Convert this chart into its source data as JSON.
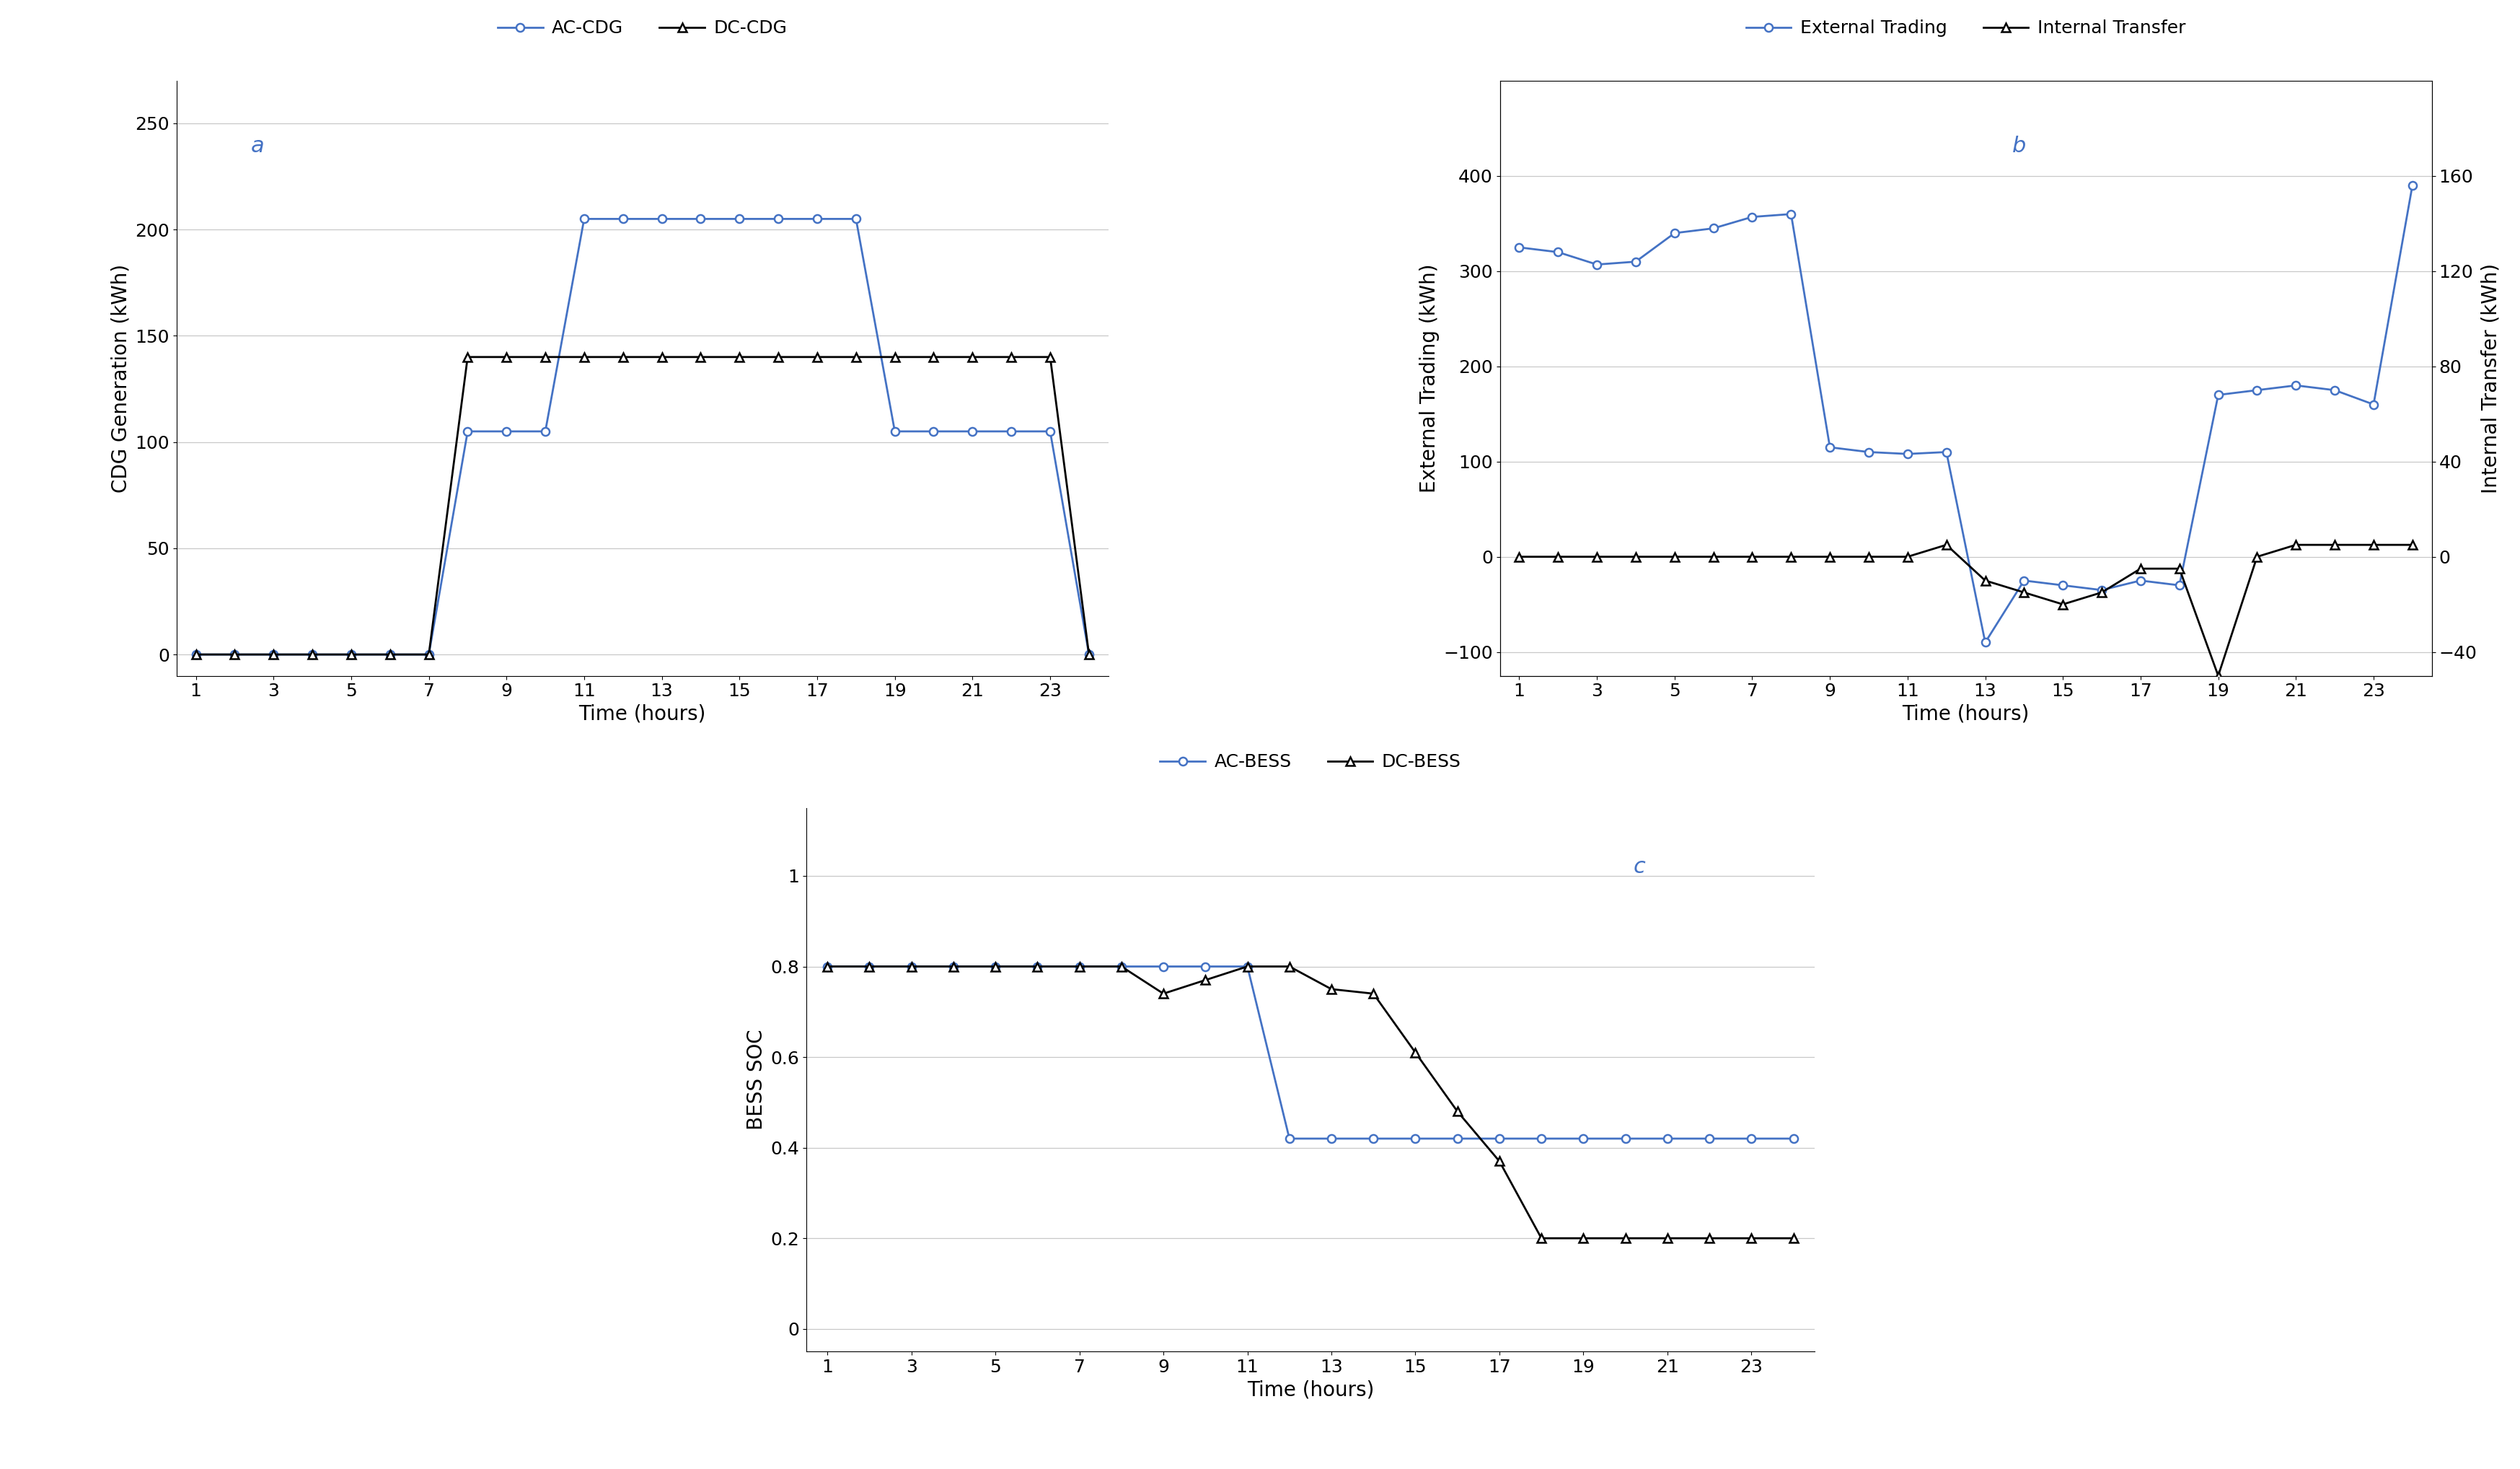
{
  "hours": [
    1,
    2,
    3,
    4,
    5,
    6,
    7,
    8,
    9,
    10,
    11,
    12,
    13,
    14,
    15,
    16,
    17,
    18,
    19,
    20,
    21,
    22,
    23,
    24
  ],
  "ac_cdg": [
    0,
    0,
    0,
    0,
    0,
    0,
    0,
    105,
    105,
    105,
    205,
    205,
    205,
    205,
    205,
    205,
    205,
    205,
    105,
    105,
    105,
    105,
    105,
    0
  ],
  "dc_cdg": [
    0,
    0,
    0,
    0,
    0,
    0,
    0,
    140,
    140,
    140,
    140,
    140,
    140,
    140,
    140,
    140,
    140,
    140,
    140,
    140,
    140,
    140,
    140,
    0
  ],
  "external_trading": [
    325,
    320,
    307,
    310,
    340,
    345,
    357,
    360,
    115,
    110,
    108,
    110,
    -90,
    -25,
    -30,
    -35,
    -25,
    -30,
    170,
    175,
    180,
    175,
    160,
    390
  ],
  "internal_transfer": [
    0,
    0,
    0,
    0,
    0,
    0,
    0,
    0,
    0,
    0,
    0,
    5,
    -10,
    -15,
    -20,
    -15,
    -5,
    -5,
    -50,
    0,
    5,
    5,
    5,
    5
  ],
  "ac_bess": [
    0.8,
    0.8,
    0.8,
    0.8,
    0.8,
    0.8,
    0.8,
    0.8,
    0.8,
    0.8,
    0.8,
    0.42,
    0.42,
    0.42,
    0.42,
    0.42,
    0.42,
    0.42,
    0.42,
    0.42,
    0.42,
    0.42,
    0.42,
    0.42
  ],
  "dc_bess": [
    0.8,
    0.8,
    0.8,
    0.8,
    0.8,
    0.8,
    0.8,
    0.8,
    0.74,
    0.77,
    0.8,
    0.8,
    0.75,
    0.74,
    0.61,
    0.48,
    0.37,
    0.2,
    0.2,
    0.2,
    0.2,
    0.2,
    0.2,
    0.2
  ],
  "blue": "#4472C4",
  "black": "#000000",
  "xticks": [
    1,
    3,
    5,
    7,
    9,
    11,
    13,
    15,
    17,
    19,
    21,
    23
  ],
  "a_yticks": [
    0,
    50,
    100,
    150,
    200,
    250
  ],
  "b_left_yticks": [
    -100,
    0,
    100,
    200,
    300,
    400
  ],
  "b_right_yticks": [
    -40,
    0,
    40,
    80,
    120,
    160
  ],
  "c_yticks": [
    0,
    0.2,
    0.4,
    0.6,
    0.8,
    1.0
  ],
  "c_yticklabels": [
    "0",
    "0.2",
    "0.4",
    "0.6",
    "0.8",
    "1"
  ]
}
